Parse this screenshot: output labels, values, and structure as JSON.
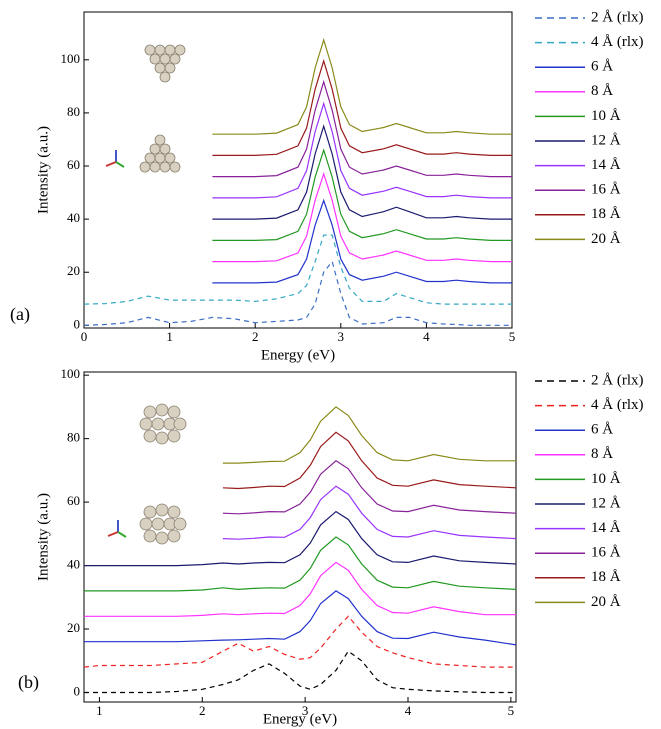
{
  "chart_data": [
    {
      "type": "line",
      "label": "(a)",
      "xlabel": "Energy (eV)",
      "ylabel": "Intensity (a.u.)",
      "x": [
        0,
        0.25,
        0.5,
        0.75,
        1,
        1.25,
        1.5,
        1.75,
        2,
        2.25,
        2.5,
        2.6,
        2.7,
        2.8,
        2.9,
        3,
        3.1,
        3.25,
        3.5,
        3.65,
        3.8,
        4,
        4.2,
        4.35,
        4.5,
        4.75,
        5
      ],
      "xlim": [
        0,
        5
      ],
      "xticks": [
        0,
        1,
        2,
        3,
        4,
        5
      ],
      "ylim": [
        -1,
        118
      ],
      "yticks": [
        0,
        20,
        40,
        60,
        80,
        100
      ],
      "series": [
        {
          "name": "2 Å (rlx)",
          "color": "#3b6fc6",
          "dash": true,
          "values": [
            0,
            0.3,
            1,
            3,
            1,
            1.5,
            3,
            2.5,
            1,
            1.5,
            2,
            3,
            8,
            20,
            24,
            12,
            3,
            0.5,
            1,
            3,
            3,
            1,
            0.5,
            0.3,
            0,
            0,
            0
          ]
        },
        {
          "name": "4 Å (rlx)",
          "color": "#35a9c4",
          "dash": true,
          "values": [
            8,
            8.2,
            9,
            11,
            9.5,
            9.5,
            9.5,
            9.5,
            9,
            10,
            12,
            15,
            24,
            34,
            34,
            22,
            14,
            9,
            9,
            12,
            10.5,
            8.5,
            8,
            8,
            8,
            8,
            8
          ]
        },
        {
          "name": "6 Å",
          "color": "#2233cc",
          "values": [
            null,
            null,
            null,
            null,
            null,
            null,
            16,
            16,
            16,
            16.3,
            19.1,
            25,
            37.7,
            47,
            37.7,
            25,
            19.1,
            17,
            18.5,
            20,
            18.5,
            16.5,
            16.5,
            17,
            16.5,
            16,
            16
          ]
        },
        {
          "name": "8 Å",
          "color": "#ff33ff",
          "values": [
            null,
            null,
            null,
            null,
            null,
            null,
            24,
            24,
            24,
            24.3,
            27.3,
            33.6,
            47.1,
            57,
            47.1,
            33.6,
            27.3,
            25,
            26.5,
            28,
            26.5,
            24.5,
            24.5,
            25,
            24.5,
            24,
            24
          ]
        },
        {
          "name": "10 Å",
          "color": "#229922",
          "values": [
            null,
            null,
            null,
            null,
            null,
            null,
            32,
            32,
            32,
            32.3,
            35.4,
            41.9,
            55.8,
            66,
            55.8,
            41.9,
            35.4,
            33,
            34.5,
            36,
            34.5,
            32.5,
            32.5,
            33,
            32.5,
            32,
            32
          ]
        },
        {
          "name": "12 Å",
          "color": "#1a1a6e",
          "values": [
            null,
            null,
            null,
            null,
            null,
            null,
            40,
            40,
            40,
            40.4,
            43.5,
            50.2,
            64.5,
            75,
            64.5,
            50.2,
            43.5,
            41,
            42.8,
            44.5,
            42.8,
            40.5,
            40.5,
            41,
            40.5,
            40,
            40
          ]
        },
        {
          "name": "14 Å",
          "color": "#9933ff",
          "values": [
            null,
            null,
            null,
            null,
            null,
            null,
            48,
            48,
            48,
            48.4,
            51.6,
            58.3,
            72.9,
            83.5,
            72.9,
            58.3,
            51.6,
            49,
            50.5,
            52,
            50.5,
            48.5,
            48.5,
            49,
            48.5,
            48,
            48
          ]
        },
        {
          "name": "16 Å",
          "color": "#882299",
          "values": [
            null,
            null,
            null,
            null,
            null,
            null,
            56,
            56,
            56,
            56.4,
            59.6,
            66.4,
            81,
            91.7,
            81,
            66.4,
            59.6,
            57,
            58.5,
            60,
            58.5,
            56.5,
            56.5,
            57,
            56.5,
            56,
            56
          ]
        },
        {
          "name": "18 Å",
          "color": "#991a1a",
          "values": [
            null,
            null,
            null,
            null,
            null,
            null,
            64,
            64,
            64,
            64.4,
            67.6,
            74.3,
            88.9,
            99.6,
            88.9,
            74.3,
            67.6,
            65,
            66.5,
            68,
            66.5,
            64.5,
            64.5,
            65,
            64.5,
            64,
            64
          ]
        },
        {
          "name": "20 Å",
          "color": "#8a8a1a",
          "values": [
            null,
            null,
            null,
            null,
            null,
            null,
            72,
            72,
            72,
            72.4,
            75.6,
            82.3,
            96.9,
            107.5,
            96.9,
            82.3,
            75.6,
            73,
            74.5,
            76,
            74.5,
            72.5,
            72.5,
            73,
            72.5,
            72,
            72
          ]
        }
      ]
    },
    {
      "type": "line",
      "label": "(b)",
      "xlabel": "Energy (eV)",
      "ylabel": "Intensity (a.u.)",
      "x": [
        0.85,
        1,
        1.25,
        1.5,
        1.75,
        2,
        2.2,
        2.35,
        2.5,
        2.65,
        2.8,
        2.95,
        3.05,
        3.15,
        3.3,
        3.42,
        3.55,
        3.7,
        3.85,
        4,
        4.25,
        4.5,
        4.75,
        5.05
      ],
      "xlim": [
        0.85,
        5.05
      ],
      "xticks": [
        1,
        2,
        3,
        4,
        5
      ],
      "ylim": [
        -3,
        101
      ],
      "yticks": [
        0,
        20,
        40,
        60,
        80,
        100
      ],
      "series": [
        {
          "name": "2 Å (rlx)",
          "color": "#000000",
          "dash": true,
          "values": [
            0,
            0,
            0,
            0,
            0.3,
            1,
            2.5,
            4,
            7,
            9,
            6,
            2,
            1,
            2.5,
            7,
            13,
            10,
            4,
            1.5,
            1,
            0.5,
            0.2,
            0,
            0
          ]
        },
        {
          "name": "4 Å (rlx)",
          "color": "#ee2222",
          "dash": true,
          "values": [
            8,
            8.5,
            8.5,
            8.5,
            9,
            9.5,
            13,
            15.5,
            13,
            14.5,
            12,
            10.5,
            11,
            14,
            20,
            24,
            19,
            14.5,
            12.5,
            11,
            9,
            8.5,
            8,
            8
          ]
        },
        {
          "name": "6 Å",
          "color": "#2233cc",
          "values": [
            16,
            16,
            16,
            16,
            16,
            16.3,
            16.5,
            16.6,
            16.8,
            17,
            16.8,
            19.2,
            22.7,
            28,
            32,
            29.6,
            24,
            19.2,
            17.1,
            17,
            19,
            17.5,
            16.5,
            15
          ]
        },
        {
          "name": "8 Å",
          "color": "#ff33ff",
          "values": [
            24,
            24,
            24,
            24,
            24,
            24.3,
            24.8,
            24.5,
            24.8,
            25,
            24.9,
            27.4,
            31.1,
            36.8,
            41,
            38.5,
            32.5,
            27.4,
            25.2,
            25,
            27,
            25.5,
            24.5,
            24.5
          ]
        },
        {
          "name": "10 Å",
          "color": "#229922",
          "values": [
            32,
            32,
            32,
            32,
            32,
            32.3,
            33,
            32.5,
            32.8,
            33,
            32.9,
            35.4,
            39.1,
            44.8,
            49,
            46.5,
            40.5,
            35.4,
            33.2,
            33,
            35,
            33.5,
            33,
            32.5
          ]
        },
        {
          "name": "12 Å",
          "color": "#1a1a6e",
          "values": [
            40,
            40,
            40,
            40,
            40,
            40.3,
            40.8,
            40.5,
            40.8,
            41,
            40.9,
            43.4,
            47.1,
            52.8,
            57,
            54.5,
            48.5,
            43.4,
            41.2,
            41,
            43,
            41.5,
            41,
            40.5
          ]
        },
        {
          "name": "14 Å",
          "color": "#9933ff",
          "values": [
            null,
            null,
            null,
            null,
            null,
            null,
            48.5,
            48.3,
            48.6,
            49,
            48.9,
            51.4,
            55.1,
            60.8,
            65,
            62.5,
            56.5,
            51.4,
            49.2,
            49,
            51,
            49.5,
            49,
            48.5
          ]
        },
        {
          "name": "16 Å",
          "color": "#882299",
          "values": [
            null,
            null,
            null,
            null,
            null,
            null,
            56.5,
            56.3,
            56.6,
            57,
            56.9,
            59.4,
            63.1,
            68.8,
            73,
            70.5,
            64.5,
            59.4,
            57.2,
            57,
            59,
            57.5,
            57,
            56.5
          ]
        },
        {
          "name": "18 Å",
          "color": "#991a1a",
          "values": [
            null,
            null,
            null,
            null,
            null,
            null,
            64.5,
            64.3,
            64.6,
            65,
            64.9,
            67.6,
            71.6,
            77.5,
            82,
            79.3,
            73,
            67.6,
            65.3,
            65,
            67,
            65.5,
            65,
            64.5
          ]
        },
        {
          "name": "20 Å",
          "color": "#8a8a1a",
          "values": [
            null,
            null,
            null,
            null,
            null,
            null,
            72.3,
            72.3,
            72.5,
            72.8,
            72.9,
            75.6,
            79.6,
            85.5,
            90,
            87.3,
            81,
            75.6,
            73.3,
            73,
            75,
            73.5,
            73,
            73
          ]
        }
      ]
    }
  ]
}
